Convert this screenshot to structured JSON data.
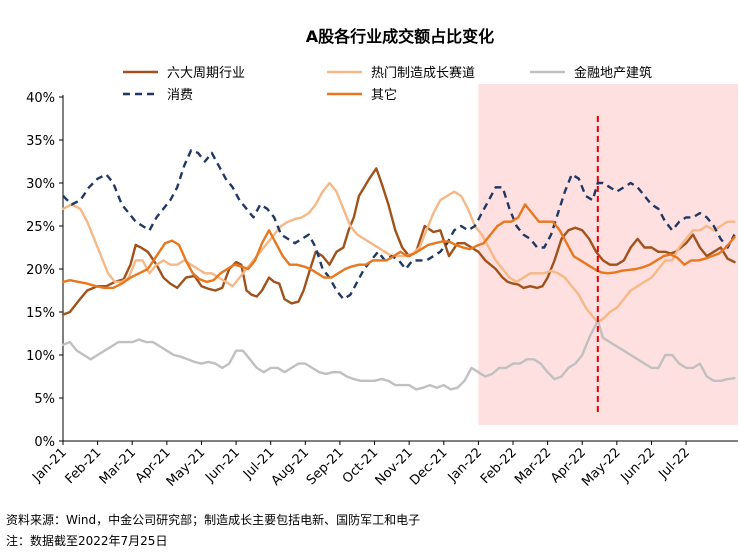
{
  "chart_data": {
    "type": "line",
    "title": "A股各行业成交额占比变化",
    "xlabel": "",
    "ylabel": "",
    "ylim": [
      0,
      40
    ],
    "y_ticks": [
      "0%",
      "5%",
      "10%",
      "15%",
      "20%",
      "25%",
      "30%",
      "35%",
      "40%"
    ],
    "x_ticks": [
      "Jan-21",
      "Feb-21",
      "Mar-21",
      "Apr-21",
      "May-21",
      "Jun-21",
      "Jul-21",
      "Aug-21",
      "Sep-21",
      "Oct-21",
      "Nov-21",
      "Dec-21",
      "Jan-22",
      "Feb-22",
      "Mar-22",
      "Apr-22",
      "May-22",
      "Jun-22",
      "Jul-22"
    ],
    "x_domain": [
      0,
      19.5
    ],
    "grid": false,
    "legend_position": "top",
    "highlight_region": {
      "start": 12.0,
      "end": 19.5,
      "color": "#ffe0e0"
    },
    "vertical_marker": {
      "x": 15.45,
      "color": "#e00000",
      "style": "dashed"
    },
    "series": [
      {
        "name": "六大周期行业",
        "color": "#a0521a",
        "dash": false,
        "width": 2.4,
        "x": [
          0.0,
          0.2,
          0.45,
          0.7,
          1.0,
          1.25,
          1.5,
          1.75,
          1.95,
          2.1,
          2.25,
          2.45,
          2.7,
          2.9,
          3.1,
          3.3,
          3.55,
          3.8,
          4.0,
          4.2,
          4.4,
          4.6,
          4.8,
          5.0,
          5.15,
          5.3,
          5.45,
          5.6,
          5.75,
          5.95,
          6.1,
          6.25,
          6.4,
          6.6,
          6.8,
          6.95,
          7.1,
          7.3,
          7.5,
          7.7,
          7.9,
          8.1,
          8.25,
          8.4,
          8.55,
          8.7,
          8.85,
          9.05,
          9.2,
          9.4,
          9.6,
          9.8,
          10.0,
          10.2,
          10.45,
          10.7,
          10.9,
          11.15,
          11.4,
          11.6,
          11.8,
          12.0,
          12.2,
          12.35,
          12.5,
          12.7,
          12.85,
          13.0,
          13.15,
          13.3,
          13.5,
          13.7,
          13.85,
          14.0,
          14.2,
          14.4,
          14.6,
          14.8,
          15.0,
          15.2,
          15.4,
          15.6,
          15.8,
          16.0,
          16.2,
          16.4,
          16.6,
          16.8,
          17.0,
          17.2,
          17.4,
          17.55,
          17.7,
          17.85,
          18.0,
          18.2,
          18.4,
          18.6,
          18.8,
          19.0,
          19.2,
          19.4
        ],
        "values": [
          14.7,
          15.0,
          16.3,
          17.5,
          18.0,
          18.0,
          18.5,
          18.8,
          20.5,
          22.8,
          22.5,
          22.0,
          20.5,
          19.0,
          18.3,
          17.8,
          19.0,
          19.2,
          18.0,
          17.7,
          17.5,
          17.8,
          20.0,
          20.8,
          20.5,
          17.5,
          17.0,
          16.8,
          17.5,
          19.0,
          18.5,
          18.3,
          16.5,
          16.0,
          16.2,
          17.5,
          19.5,
          22.0,
          21.5,
          20.5,
          22.0,
          22.5,
          24.5,
          26.0,
          28.5,
          29.5,
          30.5,
          31.7,
          30.0,
          27.5,
          24.5,
          22.5,
          21.5,
          22.0,
          25.0,
          24.3,
          24.5,
          21.5,
          23.0,
          23.0,
          22.5,
          22.0,
          21.0,
          20.5,
          20.0,
          19.0,
          18.5,
          18.3,
          18.2,
          17.8,
          18.0,
          17.8,
          18.0,
          19.0,
          21.0,
          23.5,
          24.5,
          24.8,
          24.5,
          23.5,
          22.0,
          21.0,
          20.5,
          20.5,
          21.0,
          22.5,
          23.5,
          22.5,
          22.5,
          22.0,
          22.0,
          21.8,
          22.0,
          22.5,
          23.0,
          24.0,
          22.5,
          21.5,
          22.0,
          22.5,
          21.2,
          20.8
        ]
      },
      {
        "name": "热门制造成长赛道",
        "color": "#f5b887",
        "dash": false,
        "width": 2.4,
        "x": [
          0.0,
          0.25,
          0.5,
          0.7,
          0.9,
          1.1,
          1.3,
          1.5,
          1.7,
          1.9,
          2.1,
          2.3,
          2.5,
          2.7,
          2.9,
          3.1,
          3.3,
          3.5,
          3.7,
          3.9,
          4.1,
          4.3,
          4.5,
          4.7,
          4.9,
          5.1,
          5.3,
          5.5,
          5.7,
          5.9,
          6.1,
          6.3,
          6.5,
          6.7,
          6.9,
          7.1,
          7.3,
          7.5,
          7.7,
          7.9,
          8.1,
          8.3,
          8.5,
          8.7,
          8.9,
          9.1,
          9.3,
          9.5,
          9.7,
          9.9,
          10.1,
          10.3,
          10.5,
          10.7,
          10.9,
          11.1,
          11.3,
          11.5,
          11.7,
          11.9,
          12.1,
          12.3,
          12.5,
          12.7,
          12.9,
          13.1,
          13.3,
          13.5,
          13.7,
          13.9,
          14.1,
          14.3,
          14.5,
          14.7,
          14.9,
          15.1,
          15.3,
          15.45,
          15.6,
          15.8,
          16.0,
          16.2,
          16.4,
          16.6,
          16.8,
          17.0,
          17.2,
          17.4,
          17.6,
          17.8,
          18.0,
          18.2,
          18.4,
          18.6,
          18.8,
          19.0,
          19.2,
          19.4
        ],
        "values": [
          27.0,
          27.5,
          27.0,
          25.5,
          23.5,
          21.5,
          19.5,
          18.5,
          18.5,
          19.0,
          21.0,
          21.0,
          19.5,
          20.5,
          21.0,
          20.5,
          20.5,
          21.0,
          20.5,
          20.0,
          19.5,
          19.5,
          19.0,
          18.5,
          18.0,
          19.0,
          20.0,
          21.0,
          22.0,
          23.0,
          24.0,
          25.0,
          25.5,
          25.8,
          26.0,
          26.5,
          27.5,
          29.0,
          30.0,
          29.0,
          27.0,
          25.0,
          24.0,
          23.5,
          23.0,
          22.5,
          22.0,
          21.5,
          21.5,
          21.5,
          21.8,
          22.5,
          24.5,
          26.5,
          28.0,
          28.5,
          29.0,
          28.5,
          27.0,
          25.0,
          24.0,
          22.5,
          21.0,
          20.0,
          19.0,
          18.5,
          19.0,
          19.5,
          19.5,
          19.5,
          19.8,
          19.5,
          19.0,
          18.0,
          17.0,
          15.5,
          14.5,
          13.8,
          14.2,
          15.0,
          15.5,
          16.5,
          17.5,
          18.0,
          18.5,
          19.0,
          20.0,
          21.0,
          21.0,
          22.5,
          23.5,
          24.5,
          24.5,
          25.0,
          24.5,
          25.0,
          25.5,
          25.5
        ]
      },
      {
        "name": "金融地产建筑",
        "color": "#c0c0c0",
        "dash": false,
        "width": 2.4,
        "x": [
          0.0,
          0.2,
          0.4,
          0.6,
          0.8,
          1.0,
          1.2,
          1.4,
          1.6,
          1.8,
          2.0,
          2.2,
          2.4,
          2.6,
          2.8,
          3.0,
          3.2,
          3.4,
          3.6,
          3.8,
          4.0,
          4.2,
          4.4,
          4.6,
          4.8,
          5.0,
          5.2,
          5.4,
          5.6,
          5.8,
          6.0,
          6.2,
          6.4,
          6.6,
          6.8,
          7.0,
          7.2,
          7.4,
          7.6,
          7.8,
          8.0,
          8.2,
          8.4,
          8.6,
          8.8,
          9.0,
          9.2,
          9.4,
          9.6,
          9.8,
          10.0,
          10.2,
          10.4,
          10.6,
          10.8,
          11.0,
          11.2,
          11.4,
          11.6,
          11.8,
          12.0,
          12.2,
          12.4,
          12.6,
          12.8,
          13.0,
          13.2,
          13.4,
          13.6,
          13.8,
          14.0,
          14.2,
          14.4,
          14.6,
          14.8,
          15.0,
          15.2,
          15.45,
          15.6,
          15.8,
          16.0,
          16.2,
          16.4,
          16.6,
          16.8,
          17.0,
          17.2,
          17.4,
          17.6,
          17.8,
          18.0,
          18.2,
          18.4,
          18.6,
          18.8,
          19.0,
          19.2,
          19.4
        ],
        "values": [
          11.2,
          11.5,
          10.5,
          10.0,
          9.5,
          10.0,
          10.5,
          11.0,
          11.5,
          11.5,
          11.5,
          11.8,
          11.5,
          11.5,
          11.0,
          10.5,
          10.0,
          9.8,
          9.5,
          9.2,
          9.0,
          9.2,
          9.0,
          8.5,
          9.0,
          10.5,
          10.5,
          9.5,
          8.5,
          8.0,
          8.5,
          8.5,
          8.0,
          8.5,
          9.0,
          9.0,
          8.5,
          8.0,
          7.8,
          8.0,
          8.0,
          7.5,
          7.2,
          7.0,
          7.0,
          7.0,
          7.2,
          7.0,
          6.5,
          6.5,
          6.5,
          6.0,
          6.2,
          6.5,
          6.2,
          6.5,
          6.0,
          6.2,
          7.0,
          8.5,
          8.0,
          7.5,
          7.8,
          8.5,
          8.5,
          9.0,
          9.0,
          9.5,
          9.5,
          9.0,
          8.0,
          7.2,
          7.5,
          8.5,
          9.0,
          10.0,
          12.0,
          14.0,
          12.0,
          11.5,
          11.0,
          10.5,
          10.0,
          9.5,
          9.0,
          8.5,
          8.5,
          10.0,
          10.0,
          9.0,
          8.5,
          8.5,
          9.0,
          7.5,
          7.0,
          7.0,
          7.2,
          7.3
        ]
      },
      {
        "name": "消费",
        "color": "#1f3864",
        "dash": true,
        "width": 2.4,
        "x": [
          0.0,
          0.25,
          0.5,
          0.75,
          1.0,
          1.25,
          1.45,
          1.7,
          1.9,
          2.1,
          2.3,
          2.5,
          2.7,
          2.9,
          3.1,
          3.3,
          3.5,
          3.7,
          3.9,
          4.1,
          4.3,
          4.5,
          4.7,
          4.9,
          5.1,
          5.3,
          5.5,
          5.7,
          5.9,
          6.1,
          6.3,
          6.5,
          6.7,
          6.9,
          7.1,
          7.3,
          7.5,
          7.7,
          7.9,
          8.1,
          8.3,
          8.5,
          8.7,
          8.9,
          9.1,
          9.3,
          9.5,
          9.7,
          9.9,
          10.1,
          10.3,
          10.5,
          10.7,
          10.9,
          11.1,
          11.3,
          11.5,
          11.7,
          11.9,
          12.1,
          12.3,
          12.5,
          12.7,
          12.9,
          13.1,
          13.3,
          13.5,
          13.7,
          13.9,
          14.1,
          14.3,
          14.5,
          14.7,
          14.9,
          15.1,
          15.3,
          15.45,
          15.6,
          15.8,
          16.0,
          16.2,
          16.4,
          16.6,
          16.8,
          17.0,
          17.2,
          17.4,
          17.6,
          17.8,
          18.0,
          18.2,
          18.4,
          18.6,
          18.8,
          19.0,
          19.2,
          19.4
        ],
        "values": [
          28.5,
          27.5,
          28.0,
          29.5,
          30.5,
          31.0,
          30.0,
          27.5,
          26.5,
          25.5,
          25.0,
          24.5,
          26.0,
          27.0,
          28.0,
          29.5,
          32.0,
          33.8,
          33.5,
          32.5,
          33.5,
          32.0,
          30.5,
          29.5,
          28.0,
          27.0,
          26.0,
          27.5,
          27.0,
          26.0,
          24.0,
          23.5,
          23.0,
          23.5,
          24.0,
          22.5,
          20.0,
          19.0,
          17.5,
          16.5,
          17.0,
          18.5,
          20.0,
          21.0,
          22.0,
          21.0,
          21.5,
          21.0,
          20.0,
          21.0,
          21.0,
          21.0,
          21.5,
          22.0,
          23.0,
          24.5,
          25.0,
          24.5,
          25.0,
          26.5,
          28.0,
          29.5,
          29.5,
          27.0,
          25.0,
          24.0,
          23.5,
          22.5,
          22.5,
          24.0,
          26.5,
          29.0,
          31.0,
          30.5,
          28.5,
          28.0,
          30.0,
          30.0,
          29.5,
          29.0,
          29.5,
          30.0,
          29.5,
          28.5,
          27.5,
          27.0,
          25.5,
          24.5,
          25.5,
          26.0,
          26.0,
          26.5,
          26.0,
          25.0,
          23.5,
          22.5,
          24.0
        ]
      },
      {
        "name": "其它",
        "color": "#e8771e",
        "dash": false,
        "width": 2.4,
        "x": [
          0.0,
          0.2,
          0.45,
          0.7,
          0.95,
          1.2,
          1.45,
          1.7,
          1.95,
          2.2,
          2.45,
          2.7,
          2.95,
          3.15,
          3.35,
          3.55,
          3.75,
          3.95,
          4.15,
          4.35,
          4.55,
          4.75,
          4.95,
          5.15,
          5.35,
          5.55,
          5.75,
          5.95,
          6.15,
          6.35,
          6.55,
          6.75,
          6.95,
          7.15,
          7.35,
          7.55,
          7.75,
          7.95,
          8.15,
          8.35,
          8.55,
          8.75,
          8.95,
          9.15,
          9.35,
          9.55,
          9.75,
          9.95,
          10.15,
          10.35,
          10.55,
          10.75,
          10.95,
          11.15,
          11.35,
          11.55,
          11.75,
          11.95,
          12.15,
          12.35,
          12.55,
          12.75,
          12.95,
          13.15,
          13.35,
          13.55,
          13.75,
          13.95,
          14.15,
          14.35,
          14.55,
          14.75,
          14.95,
          15.15,
          15.35,
          15.55,
          15.75,
          15.95,
          16.15,
          16.35,
          16.55,
          16.75,
          16.95,
          17.15,
          17.35,
          17.55,
          17.75,
          17.95,
          18.15,
          18.35,
          18.55,
          18.75,
          18.95,
          19.15,
          19.4
        ],
        "values": [
          18.5,
          18.7,
          18.5,
          18.3,
          18.0,
          17.8,
          17.8,
          18.3,
          19.0,
          19.5,
          20.0,
          21.5,
          23.0,
          23.3,
          22.8,
          21.0,
          19.5,
          18.8,
          18.5,
          18.7,
          19.5,
          20.0,
          20.5,
          20.3,
          20.0,
          21.0,
          23.0,
          24.5,
          23.0,
          21.5,
          20.5,
          20.5,
          20.3,
          20.0,
          19.5,
          19.0,
          19.0,
          19.5,
          20.0,
          20.3,
          20.5,
          20.5,
          21.0,
          21.0,
          21.0,
          21.5,
          22.0,
          21.5,
          21.8,
          22.3,
          22.8,
          23.0,
          23.2,
          23.2,
          22.8,
          22.5,
          22.3,
          22.7,
          23.0,
          24.0,
          25.0,
          25.5,
          25.5,
          26.0,
          27.5,
          26.5,
          25.5,
          25.5,
          25.5,
          24.5,
          23.0,
          21.5,
          21.0,
          20.5,
          20.0,
          19.6,
          19.5,
          19.6,
          19.8,
          19.9,
          20.0,
          20.2,
          20.5,
          21.0,
          21.5,
          21.7,
          21.3,
          20.5,
          21.0,
          21.0,
          21.2,
          21.5,
          21.8,
          22.5,
          23.7
        ]
      }
    ]
  },
  "legend": {
    "order": [
      0,
      1,
      2,
      3,
      4
    ]
  },
  "footnotes": {
    "source": "资料来源：Wind，中金公司研究部；制造成长主要包括电新、国防军工和电子",
    "note": "注：数据截至2022年7月25日"
  }
}
